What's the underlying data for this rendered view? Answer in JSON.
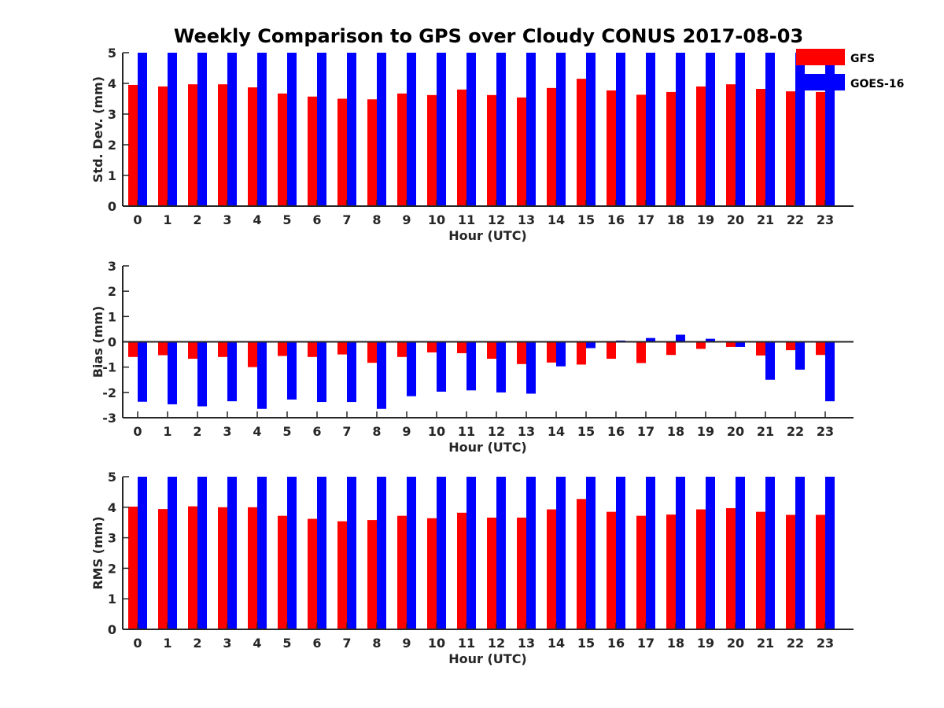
{
  "title": "Weekly Comparison to GPS over Cloudy CONUS 2017-08-03",
  "colors": {
    "GFS": "#ff0000",
    "GOES-16": "#0000ff",
    "axis": "#262626"
  },
  "legend": {
    "placement": "top-right",
    "entries": [
      "GFS",
      "GOES-16"
    ]
  },
  "chart_data": [
    {
      "type": "bar",
      "xlabel": "Hour (UTC)",
      "ylabel": "Std. Dev. (mm)",
      "ylim": [
        0,
        5
      ],
      "yticks": [
        0,
        1,
        2,
        3,
        4,
        5
      ],
      "categories": [
        "0",
        "1",
        "2",
        "3",
        "4",
        "5",
        "6",
        "7",
        "8",
        "9",
        "10",
        "11",
        "12",
        "13",
        "14",
        "15",
        "16",
        "17",
        "18",
        "19",
        "20",
        "21",
        "22",
        "23"
      ],
      "series": [
        {
          "name": "GFS",
          "values": [
            3.95,
            3.9,
            3.97,
            3.97,
            3.87,
            3.67,
            3.57,
            3.5,
            3.48,
            3.67,
            3.62,
            3.8,
            3.62,
            3.54,
            3.85,
            4.15,
            3.77,
            3.63,
            3.72,
            3.9,
            3.97,
            3.82,
            3.74,
            3.72
          ]
        },
        {
          "name": "GOES-16",
          "values": [
            5,
            5,
            5,
            5,
            5,
            5,
            5,
            5,
            5,
            5,
            5,
            5,
            5,
            5,
            5,
            5,
            5,
            5,
            5,
            5,
            5,
            5,
            5,
            5
          ]
        }
      ]
    },
    {
      "type": "bar",
      "xlabel": "Hour (UTC)",
      "ylabel": "Bias (mm)",
      "ylim": [
        -3,
        3
      ],
      "yticks": [
        -3,
        -2,
        -1,
        0,
        1,
        2,
        3
      ],
      "zero_line": true,
      "categories": [
        "0",
        "1",
        "2",
        "3",
        "4",
        "5",
        "6",
        "7",
        "8",
        "9",
        "10",
        "11",
        "12",
        "13",
        "14",
        "15",
        "16",
        "17",
        "18",
        "19",
        "20",
        "21",
        "22",
        "23"
      ],
      "series": [
        {
          "name": "GFS",
          "values": [
            -0.6,
            -0.53,
            -0.67,
            -0.6,
            -1.0,
            -0.56,
            -0.6,
            -0.5,
            -0.83,
            -0.6,
            -0.42,
            -0.45,
            -0.67,
            -0.88,
            -0.82,
            -0.9,
            -0.67,
            -0.84,
            -0.52,
            -0.28,
            -0.2,
            -0.54,
            -0.33,
            -0.52
          ]
        },
        {
          "name": "GOES-16",
          "values": [
            -2.37,
            -2.47,
            -2.55,
            -2.35,
            -2.65,
            -2.28,
            -2.38,
            -2.38,
            -2.65,
            -2.15,
            -1.97,
            -1.92,
            -2.0,
            -2.05,
            -0.97,
            -0.25,
            0.05,
            0.15,
            0.28,
            0.12,
            -0.2,
            -1.5,
            -1.1,
            -2.35
          ]
        }
      ]
    },
    {
      "type": "bar",
      "xlabel": "Hour (UTC)",
      "ylabel": "RMS (mm)",
      "ylim": [
        0,
        5
      ],
      "yticks": [
        0,
        1,
        2,
        3,
        4,
        5
      ],
      "categories": [
        "0",
        "1",
        "2",
        "3",
        "4",
        "5",
        "6",
        "7",
        "8",
        "9",
        "10",
        "11",
        "12",
        "13",
        "14",
        "15",
        "16",
        "17",
        "18",
        "19",
        "20",
        "21",
        "22",
        "23"
      ],
      "series": [
        {
          "name": "GFS",
          "values": [
            4.02,
            3.94,
            4.03,
            4.0,
            4.0,
            3.72,
            3.62,
            3.54,
            3.58,
            3.72,
            3.64,
            3.82,
            3.66,
            3.66,
            3.93,
            4.27,
            3.85,
            3.72,
            3.76,
            3.93,
            3.97,
            3.85,
            3.75,
            3.75
          ]
        },
        {
          "name": "GOES-16",
          "values": [
            5,
            5,
            5,
            5,
            5,
            5,
            5,
            5,
            5,
            5,
            5,
            5,
            5,
            5,
            5,
            5,
            5,
            5,
            5,
            5,
            5,
            5,
            5,
            5
          ]
        }
      ]
    }
  ]
}
